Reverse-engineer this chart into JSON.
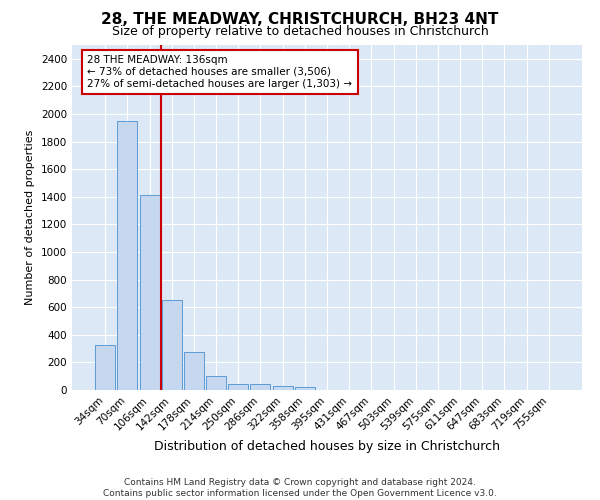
{
  "title": "28, THE MEADWAY, CHRISTCHURCH, BH23 4NT",
  "subtitle": "Size of property relative to detached houses in Christchurch",
  "xlabel": "Distribution of detached houses by size in Christchurch",
  "ylabel": "Number of detached properties",
  "footer_line1": "Contains HM Land Registry data © Crown copyright and database right 2024.",
  "footer_line2": "Contains public sector information licensed under the Open Government Licence v3.0.",
  "bar_labels": [
    "34sqm",
    "70sqm",
    "106sqm",
    "142sqm",
    "178sqm",
    "214sqm",
    "250sqm",
    "286sqm",
    "322sqm",
    "358sqm",
    "395sqm",
    "431sqm",
    "467sqm",
    "503sqm",
    "539sqm",
    "575sqm",
    "611sqm",
    "647sqm",
    "683sqm",
    "719sqm",
    "755sqm"
  ],
  "bar_values": [
    325,
    1950,
    1410,
    650,
    275,
    100,
    47,
    40,
    30,
    22,
    0,
    0,
    0,
    0,
    0,
    0,
    0,
    0,
    0,
    0,
    0
  ],
  "bar_color": "#c5d8f0",
  "bar_edge_color": "#5b9bd5",
  "vline_x": 2.5,
  "vline_color": "#cc0000",
  "annotation_title": "28 THE MEADWAY: 136sqm",
  "annotation_line1": "← 73% of detached houses are smaller (3,506)",
  "annotation_line2": "27% of semi-detached houses are larger (1,303) →",
  "annotation_box_facecolor": "#ffffff",
  "annotation_box_edgecolor": "#cc0000",
  "ylim": [
    0,
    2500
  ],
  "yticks": [
    0,
    200,
    400,
    600,
    800,
    1000,
    1200,
    1400,
    1600,
    1800,
    2000,
    2200,
    2400
  ],
  "fig_facecolor": "#ffffff",
  "ax_facecolor": "#dce8f5",
  "grid_color": "#ffffff",
  "title_fontsize": 11,
  "subtitle_fontsize": 9,
  "ylabel_fontsize": 8,
  "xlabel_fontsize": 9,
  "tick_fontsize": 7.5,
  "footer_fontsize": 6.5
}
